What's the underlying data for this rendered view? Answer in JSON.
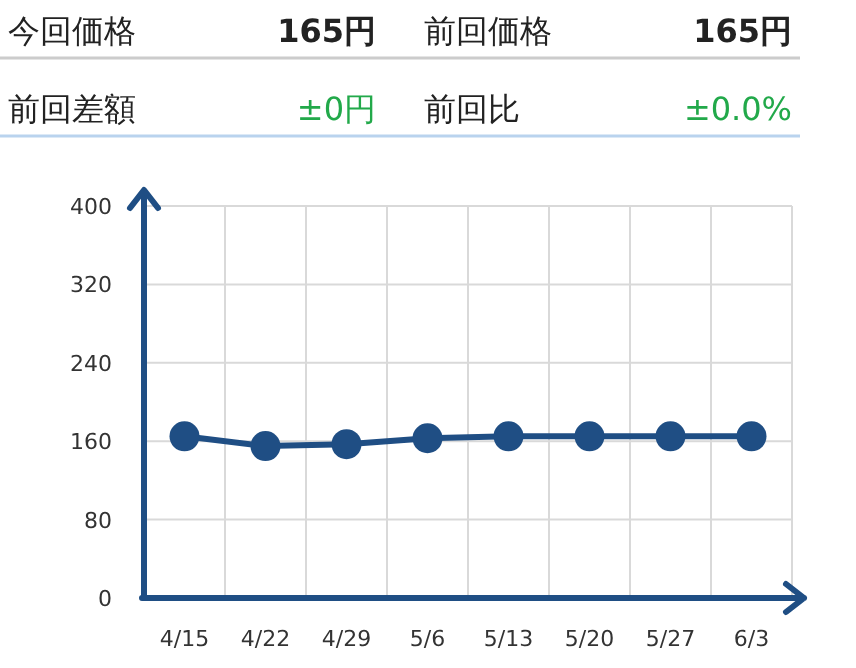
{
  "chart_data": [
    {
      "type": "other",
      "annotations": [
        "今回価格",
        "165円",
        "前回価格",
        "165円",
        "前回差額",
        "±0円",
        "前回比",
        "±0.0%"
      ]
    },
    {
      "type": "line",
      "categories": [
        "4/15",
        "4/22",
        "4/29",
        "5/6",
        "5/13",
        "5/20",
        "5/27",
        "6/3"
      ],
      "series": [
        {
          "color": "#1f4e84",
          "values": [
            165,
            155,
            157,
            163,
            165,
            165,
            165,
            165
          ]
        }
      ],
      "ylim": [
        0,
        400
      ],
      "yticks": [
        0,
        80,
        160,
        240,
        320,
        400
      ],
      "grid": true,
      "marker": "circle",
      "line_style": "solid"
    }
  ]
}
